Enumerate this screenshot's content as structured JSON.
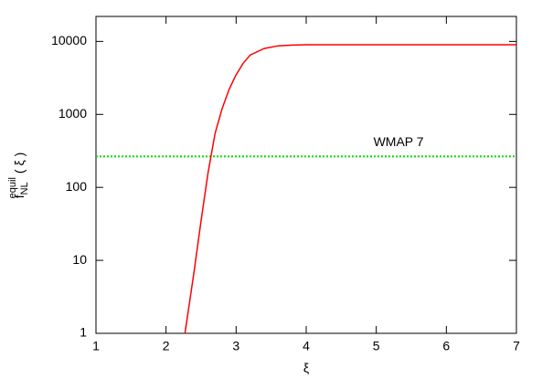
{
  "chart_data": {
    "type": "line",
    "xlabel": "ξ",
    "ylabel": {
      "base": "f",
      "sub": "NL",
      "sup": "equil",
      "suffix": "( ξ )"
    },
    "x": [
      2.27,
      2.4,
      2.5,
      2.6,
      2.7,
      2.8,
      2.9,
      3.0,
      3.1,
      3.2,
      3.4,
      3.6,
      3.8,
      4,
      5,
      6,
      7
    ],
    "series": [
      {
        "color": "#ff0000",
        "values": [
          1,
          7,
          35,
          160,
          550,
          1200,
          2200,
          3500,
          5000,
          6500,
          8000,
          8700,
          8900,
          9000,
          9000,
          9000,
          9000
        ]
      }
    ],
    "hline": {
      "value": 266,
      "color": "#00dd00",
      "label": "WMAP 7"
    },
    "xlim": [
      1,
      7
    ],
    "xticks": [
      1,
      2,
      3,
      4,
      5,
      6,
      7
    ],
    "ylim": [
      1,
      22000
    ],
    "yticks": [
      1,
      10,
      100,
      1000,
      10000
    ],
    "ylog": true
  }
}
